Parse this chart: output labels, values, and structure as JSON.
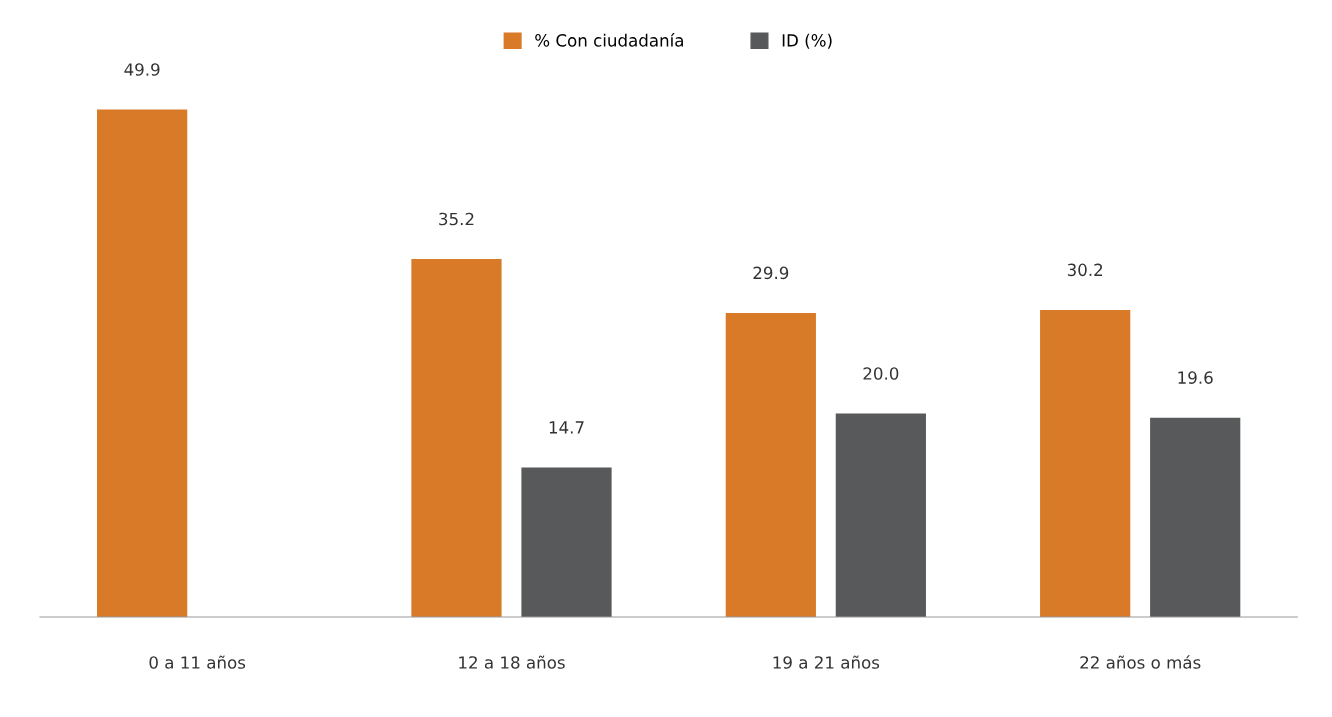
{
  "chart_data": {
    "type": "bar",
    "categories": [
      "0 a 11 años",
      "12 a 18 años",
      "19 a 21 años",
      "22 años o más"
    ],
    "series": [
      {
        "name": "% Con ciudadanía",
        "color": "#d87a28",
        "values": [
          49.9,
          35.2,
          29.9,
          30.2
        ],
        "value_labels": [
          "49.9",
          "35.2",
          "29.9",
          "30.2"
        ]
      },
      {
        "name": "ID (%)",
        "color": "#58595b",
        "values": [
          null,
          14.7,
          20.0,
          19.6
        ],
        "value_labels": [
          null,
          "14.7",
          "20.0",
          "19.6"
        ]
      }
    ],
    "legend": "top",
    "grid": false
  }
}
